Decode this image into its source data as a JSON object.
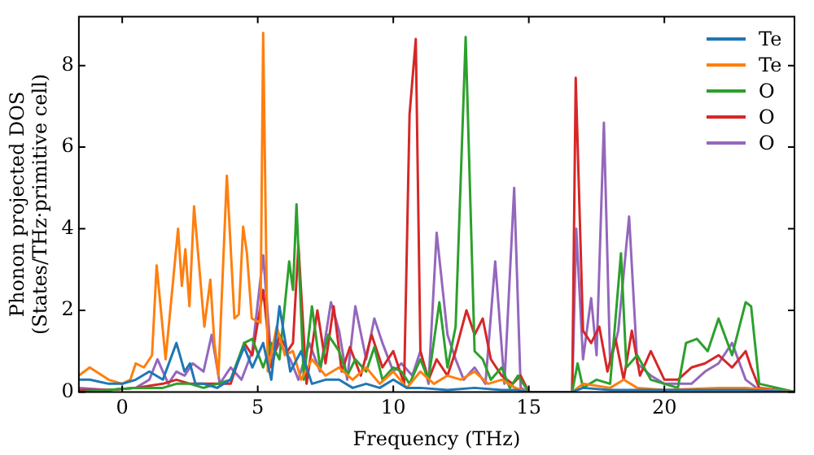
{
  "chart_data": {
    "type": "line",
    "xlabel": "Frequency (THz)",
    "ylabel": "Phonon projected DOS\n(States/THz·primitive cell)",
    "xlim": [
      -1.6,
      24.8
    ],
    "ylim": [
      0,
      9.2
    ],
    "xticks": [
      0,
      5,
      10,
      15,
      20
    ],
    "yticks": [
      0,
      2,
      4,
      6,
      8
    ],
    "grid": false,
    "legend": "top right",
    "marker": "none",
    "line_style": "solid",
    "series": [
      {
        "name": "Te",
        "color": "#1f77b4",
        "x": [
          -1.6,
          -1.2,
          -0.5,
          0,
          0.5,
          1,
          1.5,
          2,
          2.3,
          2.5,
          2.7,
          3,
          3.5,
          4,
          4.5,
          4.8,
          5.2,
          5.5,
          5.8,
          6.2,
          6.6,
          7,
          7.5,
          8,
          8.5,
          9,
          9.5,
          10,
          10.5,
          11,
          12,
          13,
          14,
          14.5,
          15,
          16.6,
          17,
          18,
          19,
          20,
          22,
          23,
          24.8
        ],
        "values": [
          0.3,
          0.3,
          0.2,
          0.2,
          0.3,
          0.5,
          0.3,
          1.2,
          0.5,
          0.7,
          0.2,
          0.2,
          0.1,
          0.3,
          1.1,
          0.6,
          1.2,
          0.3,
          2.1,
          0.5,
          1.0,
          0.2,
          0.3,
          0.3,
          0.1,
          0.2,
          0.1,
          0.3,
          0.1,
          0.1,
          0.05,
          0.1,
          0.05,
          0.05,
          0,
          0,
          0.1,
          0.05,
          0.05,
          0.05,
          0.05,
          0.05,
          0
        ]
      },
      {
        "name": "Te",
        "color": "#ff7f0e",
        "x": [
          -1.6,
          -1.2,
          -0.5,
          0,
          0.3,
          0.5,
          0.8,
          1.1,
          1.27,
          1.6,
          2.06,
          2.2,
          2.33,
          2.48,
          2.65,
          3.03,
          3.25,
          3.4,
          3.55,
          3.86,
          4.14,
          4.3,
          4.46,
          4.6,
          4.78,
          5.1,
          5.2,
          5.37,
          5.7,
          6,
          6.3,
          6.6,
          7,
          7.5,
          8,
          8.5,
          9,
          9.5,
          10,
          10.5,
          11,
          11.5,
          12,
          12.5,
          13,
          13.5,
          14,
          14.5,
          15,
          16.6,
          17,
          18,
          18.5,
          19,
          20,
          22,
          23,
          24.8
        ],
        "values": [
          0.4,
          0.6,
          0.3,
          0.2,
          0.3,
          0.7,
          0.6,
          0.9,
          3.1,
          0.8,
          4.0,
          2.6,
          3.5,
          2.1,
          4.55,
          1.6,
          2.75,
          1.2,
          0.4,
          5.3,
          1.8,
          1.9,
          4.05,
          3.4,
          1.8,
          1.7,
          8.8,
          0.5,
          1.6,
          0.9,
          1.0,
          0.3,
          0.8,
          0.4,
          0.6,
          0.3,
          0.6,
          0.2,
          0.5,
          0.1,
          0.5,
          0.2,
          0.4,
          0.3,
          0.5,
          0.2,
          0.3,
          0.1,
          0,
          0,
          0.2,
          0.1,
          0.3,
          0.1,
          0.05,
          0.1,
          0.1,
          0
        ]
      },
      {
        "name": "O",
        "color": "#2ca02c",
        "x": [
          -1.6,
          -0.5,
          0.5,
          1.5,
          2,
          2.5,
          3,
          3.5,
          4,
          4.5,
          4.8,
          5.2,
          5.5,
          5.8,
          6.16,
          6.3,
          6.43,
          6.7,
          7,
          7.3,
          7.6,
          8,
          8.3,
          8.6,
          9,
          9.3,
          9.6,
          10,
          10.3,
          10.6,
          11,
          11.3,
          11.7,
          12,
          12.3,
          12.67,
          13,
          13.3,
          13.6,
          14,
          14.3,
          14.6,
          15,
          16.6,
          16.8,
          17,
          17.5,
          18,
          18.4,
          18.6,
          19,
          19.5,
          20,
          20.5,
          20.8,
          21.2,
          21.6,
          22,
          22.5,
          23,
          23.2,
          23.5,
          24.8
        ],
        "values": [
          0,
          0.05,
          0.1,
          0.1,
          0.2,
          0.2,
          0.1,
          0.2,
          0.3,
          1.2,
          1.3,
          0.6,
          1.2,
          0.8,
          3.2,
          2.5,
          4.6,
          0.3,
          2.1,
          0.6,
          1.4,
          1.0,
          0.4,
          0.8,
          0.5,
          1.1,
          0.3,
          0.6,
          0.5,
          0.2,
          0.8,
          0.3,
          2.2,
          0.6,
          1.6,
          8.7,
          1.0,
          0.8,
          0.3,
          0.6,
          0.1,
          0.4,
          0,
          0,
          0.7,
          0.1,
          0.3,
          0.2,
          3.4,
          0.6,
          0.9,
          0.3,
          0.2,
          0.1,
          1.2,
          1.3,
          1.0,
          1.8,
          0.9,
          2.2,
          2.1,
          0.2,
          0
        ]
      },
      {
        "name": "O",
        "color": "#d62728",
        "x": [
          -1.6,
          -0.5,
          0.5,
          1.5,
          2,
          2.5,
          3,
          3.5,
          4,
          4.5,
          4.8,
          5.2,
          5.5,
          5.8,
          6.1,
          6.3,
          6.5,
          6.8,
          7.2,
          7.5,
          7.8,
          8.1,
          8.4,
          8.8,
          9.2,
          9.6,
          10,
          10.4,
          10.6,
          10.83,
          11,
          11.3,
          11.6,
          12,
          12.3,
          12.7,
          13,
          13.3,
          13.6,
          14,
          14.4,
          14.7,
          15,
          16.6,
          16.73,
          17,
          17.3,
          17.6,
          17.9,
          18.2,
          18.5,
          18.8,
          19.1,
          19.5,
          20,
          20.5,
          21,
          21.5,
          22,
          22.5,
          23,
          23.2,
          23.5,
          24.8
        ],
        "values": [
          0.05,
          0.05,
          0.1,
          0.2,
          0.3,
          0.2,
          0.2,
          0.2,
          0.2,
          1.2,
          0.9,
          2.5,
          0.6,
          1.4,
          1.0,
          1.2,
          3.6,
          0.2,
          2.0,
          0.7,
          2.1,
          0.5,
          1.1,
          0.4,
          1.4,
          0.6,
          1.0,
          0.2,
          6.8,
          8.65,
          1.0,
          0.3,
          0.8,
          0.4,
          1.0,
          2.0,
          1.4,
          1.8,
          0.8,
          0.4,
          0.2,
          0.4,
          0,
          0,
          7.7,
          1.5,
          1.2,
          1.6,
          0.5,
          1.3,
          0.3,
          1.5,
          0.4,
          1.0,
          0.3,
          0.3,
          0.6,
          0.7,
          0.9,
          0.6,
          1.0,
          0.6,
          0.1,
          0
        ]
      },
      {
        "name": "O",
        "color": "#9467bd",
        "x": [
          -1.6,
          -0.5,
          0.5,
          1,
          1.3,
          1.7,
          2,
          2.3,
          2.6,
          3,
          3.3,
          3.6,
          4,
          4.4,
          4.8,
          5.2,
          5.5,
          5.8,
          6.2,
          6.5,
          6.9,
          7.3,
          7.7,
          8,
          8.3,
          8.6,
          9,
          9.3,
          9.6,
          10,
          10.3,
          10.7,
          11,
          11.3,
          11.6,
          12,
          12.3,
          12.6,
          13,
          13.4,
          13.76,
          14.1,
          14.46,
          14.7,
          15,
          16.6,
          16.75,
          17,
          17.3,
          17.5,
          17.77,
          18,
          18.3,
          18.7,
          19,
          19.5,
          20,
          21,
          21.5,
          22,
          22.5,
          23,
          23.5,
          24.8
        ],
        "values": [
          0.1,
          0.05,
          0.1,
          0.3,
          0.8,
          0.2,
          0.5,
          0.4,
          0.7,
          0.5,
          1.4,
          0.2,
          0.6,
          0.3,
          1.0,
          3.35,
          0.8,
          1.2,
          0.8,
          0.3,
          1.2,
          0.5,
          2.2,
          1.5,
          0.3,
          2.1,
          0.8,
          1.8,
          1.2,
          0.5,
          0.7,
          0.4,
          1.0,
          0.2,
          3.9,
          1.4,
          0.8,
          0.3,
          0.6,
          0.2,
          3.2,
          0.2,
          5.0,
          0.1,
          0,
          0,
          4.0,
          0.8,
          2.3,
          0.9,
          6.6,
          0.7,
          1.5,
          4.3,
          0.7,
          0.4,
          0.2,
          0.2,
          0.5,
          0.7,
          1.2,
          0.3,
          0.05,
          0
        ]
      }
    ]
  }
}
